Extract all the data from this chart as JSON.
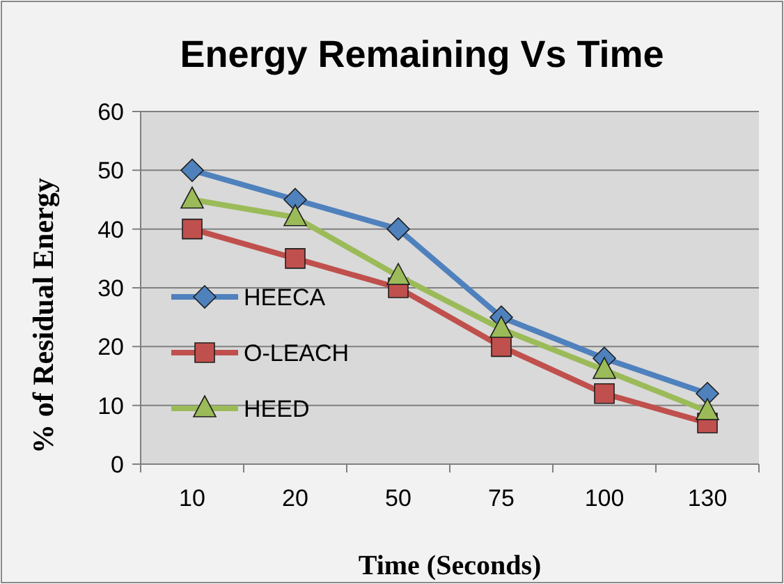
{
  "chart_data": {
    "type": "line",
    "title": "Energy Remaining Vs Time",
    "xlabel": "Time (Seconds)",
    "ylabel": "%  of Residual Energy",
    "categories": [
      "10",
      "20",
      "50",
      "75",
      "100",
      "130"
    ],
    "series": [
      {
        "name": "HEECA",
        "color": "#4f81bd",
        "marker": "diamond",
        "values": [
          50,
          45,
          40,
          25,
          18,
          12
        ]
      },
      {
        "name": "O-LEACH",
        "color": "#c0504d",
        "marker": "square",
        "values": [
          40,
          35,
          30,
          20,
          12,
          7
        ]
      },
      {
        "name": "HEED",
        "color": "#9bbb59",
        "marker": "triangle",
        "values": [
          45,
          42,
          32,
          23,
          16,
          9
        ]
      }
    ],
    "ylim": [
      0,
      60
    ],
    "yticks": [
      0,
      10,
      20,
      30,
      40,
      50,
      60
    ],
    "grid": "y",
    "legend": "bottom left"
  }
}
